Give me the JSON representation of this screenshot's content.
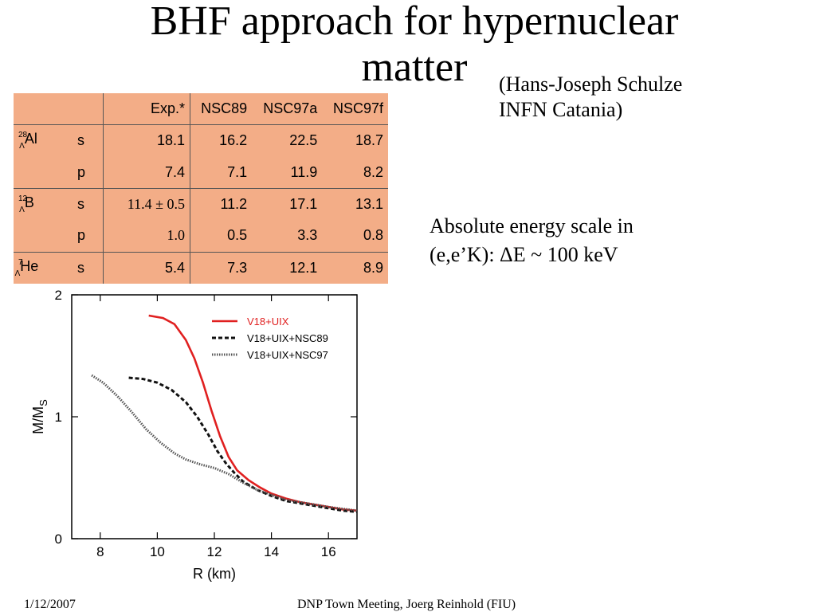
{
  "slide": {
    "title_line1": "BHF approach for hypernuclear",
    "title_line2": "matter",
    "credit_line1": "(Hans-Joseph Schulze",
    "credit_line2": "INFN Catania)",
    "note_line1": "Absolute energy scale in",
    "note_line2": "(e,e’K): ΔE ~ 100 keV",
    "footer_date": "1/12/2007",
    "footer_center": "DNP Town Meeting,  Joerg Reinhold (FIU)"
  },
  "table": {
    "headers": [
      "",
      "",
      "Exp.*",
      "NSC89",
      "NSC97a",
      "NSC97f"
    ],
    "rows": [
      {
        "nucleus_mass": "28",
        "nucleus_sub": "Λ",
        "nucleus_sym": "Al",
        "level": "s",
        "exp": "18.1",
        "nsc89": "16.2",
        "nsc97a": "22.5",
        "nsc97f": "18.7"
      },
      {
        "nucleus_mass": "",
        "nucleus_sub": "",
        "nucleus_sym": "",
        "level": "p",
        "exp": "7.4",
        "nsc89": "7.1",
        "nsc97a": "11.9",
        "nsc97f": "8.2"
      },
      {
        "nucleus_mass": "12",
        "nucleus_sub": "Λ",
        "nucleus_sym": "B",
        "level": "s",
        "exp": "11.4 ± 0.5",
        "nsc89": "11.2",
        "nsc97a": "17.1",
        "nsc97f": "13.1"
      },
      {
        "nucleus_mass": "",
        "nucleus_sub": "",
        "nucleus_sym": "",
        "level": "p",
        "exp": "1.0",
        "nsc89": "0.5",
        "nsc97a": "3.3",
        "nsc97f": "0.8"
      },
      {
        "nucleus_mass": "7",
        "nucleus_sub": "Λ",
        "nucleus_sym": "He",
        "level": "s",
        "exp": "5.4",
        "nsc89": "7.3",
        "nsc97a": "12.1",
        "nsc97f": "8.9"
      }
    ]
  },
  "chart_data": {
    "type": "line",
    "title": "",
    "xlabel": "R (km)",
    "ylabel": "M/M_S",
    "ylabel_main": "M/M",
    "ylabel_sub": "S",
    "xlim": [
      7,
      17
    ],
    "ylim": [
      0,
      2
    ],
    "xticks": [
      8,
      10,
      12,
      14,
      16
    ],
    "yticks": [
      0,
      1,
      2
    ],
    "legend_position": "top-right",
    "series": [
      {
        "name": "V18+UIX",
        "color": "#e02020",
        "style": "solid",
        "x": [
          9.7,
          10.2,
          10.6,
          11.0,
          11.3,
          11.6,
          11.9,
          12.2,
          12.5,
          12.8,
          13.2,
          13.6,
          14.0,
          14.5,
          15.0,
          15.5,
          16.0,
          16.5,
          17.0
        ],
        "y": [
          1.83,
          1.81,
          1.76,
          1.63,
          1.48,
          1.28,
          1.05,
          0.84,
          0.67,
          0.56,
          0.48,
          0.42,
          0.37,
          0.33,
          0.3,
          0.28,
          0.26,
          0.24,
          0.23
        ]
      },
      {
        "name": "V18+UIX+NSC89",
        "color": "#111111",
        "style": "dashed",
        "x": [
          9.0,
          9.5,
          10.0,
          10.5,
          11.0,
          11.4,
          11.8,
          12.1,
          12.4,
          12.7,
          13.0,
          13.5,
          14.0,
          14.5,
          15.0,
          15.5,
          16.0,
          16.5,
          17.0
        ],
        "y": [
          1.32,
          1.31,
          1.28,
          1.22,
          1.12,
          1.0,
          0.85,
          0.72,
          0.62,
          0.54,
          0.47,
          0.4,
          0.35,
          0.31,
          0.29,
          0.27,
          0.25,
          0.23,
          0.22
        ]
      },
      {
        "name": "V18+UIX+NSC97",
        "color": "#555555",
        "style": "dotted",
        "x": [
          7.7,
          8.1,
          8.6,
          9.1,
          9.6,
          10.1,
          10.6,
          11.0,
          11.5,
          12.0,
          12.5,
          13.0,
          13.5,
          14.0,
          14.5,
          15.0,
          16.0,
          17.0
        ],
        "y": [
          1.34,
          1.28,
          1.17,
          1.04,
          0.9,
          0.79,
          0.7,
          0.65,
          0.61,
          0.58,
          0.53,
          0.46,
          0.4,
          0.36,
          0.32,
          0.3,
          0.26,
          0.23
        ]
      }
    ]
  }
}
